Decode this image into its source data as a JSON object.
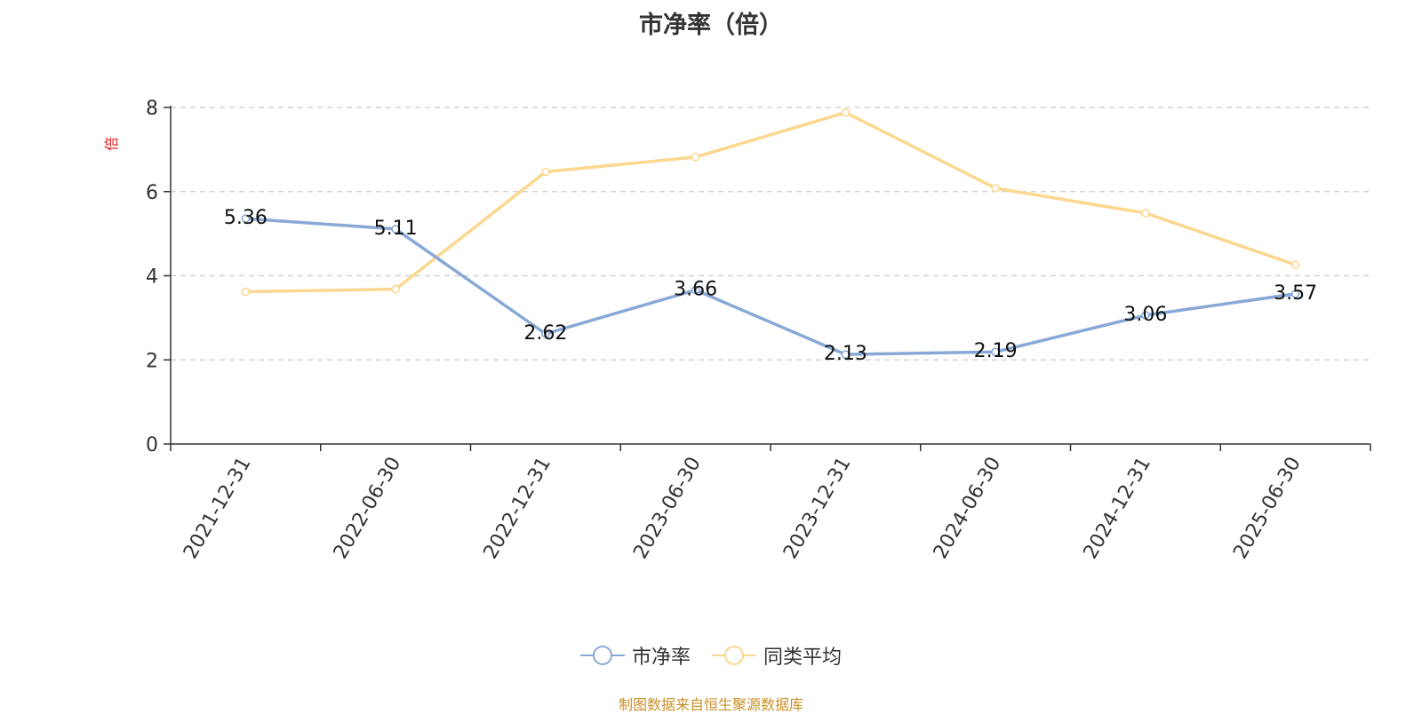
{
  "chart_data": {
    "type": "line",
    "title": "市净率（倍）",
    "ylabel": "倍",
    "xlabel": "",
    "categories": [
      "2021-12-31",
      "2022-06-30",
      "2022-12-31",
      "2023-06-30",
      "2023-12-31",
      "2024-06-30",
      "2024-12-31",
      "2025-06-30"
    ],
    "series": [
      {
        "name": "市净率",
        "color": "#88a9d6",
        "values": [
          5.36,
          5.11,
          2.62,
          3.66,
          2.13,
          2.19,
          3.06,
          3.57
        ],
        "data_labels": [
          "5.36",
          "5.11",
          "2.62",
          "3.66",
          "2.13",
          "2.19",
          "3.06",
          "3.57"
        ]
      },
      {
        "name": "同类平均",
        "color": "#fbd78f",
        "values": [
          3.62,
          3.68,
          6.47,
          6.82,
          7.88,
          6.08,
          5.49,
          4.26
        ]
      }
    ],
    "ylim": [
      0,
      8
    ],
    "yticks": [
      "0",
      "2",
      "4",
      "6",
      "8"
    ],
    "grid": true,
    "legend_position": "bottom-center"
  },
  "source_note": "制图数据来自恒生聚源数据库"
}
